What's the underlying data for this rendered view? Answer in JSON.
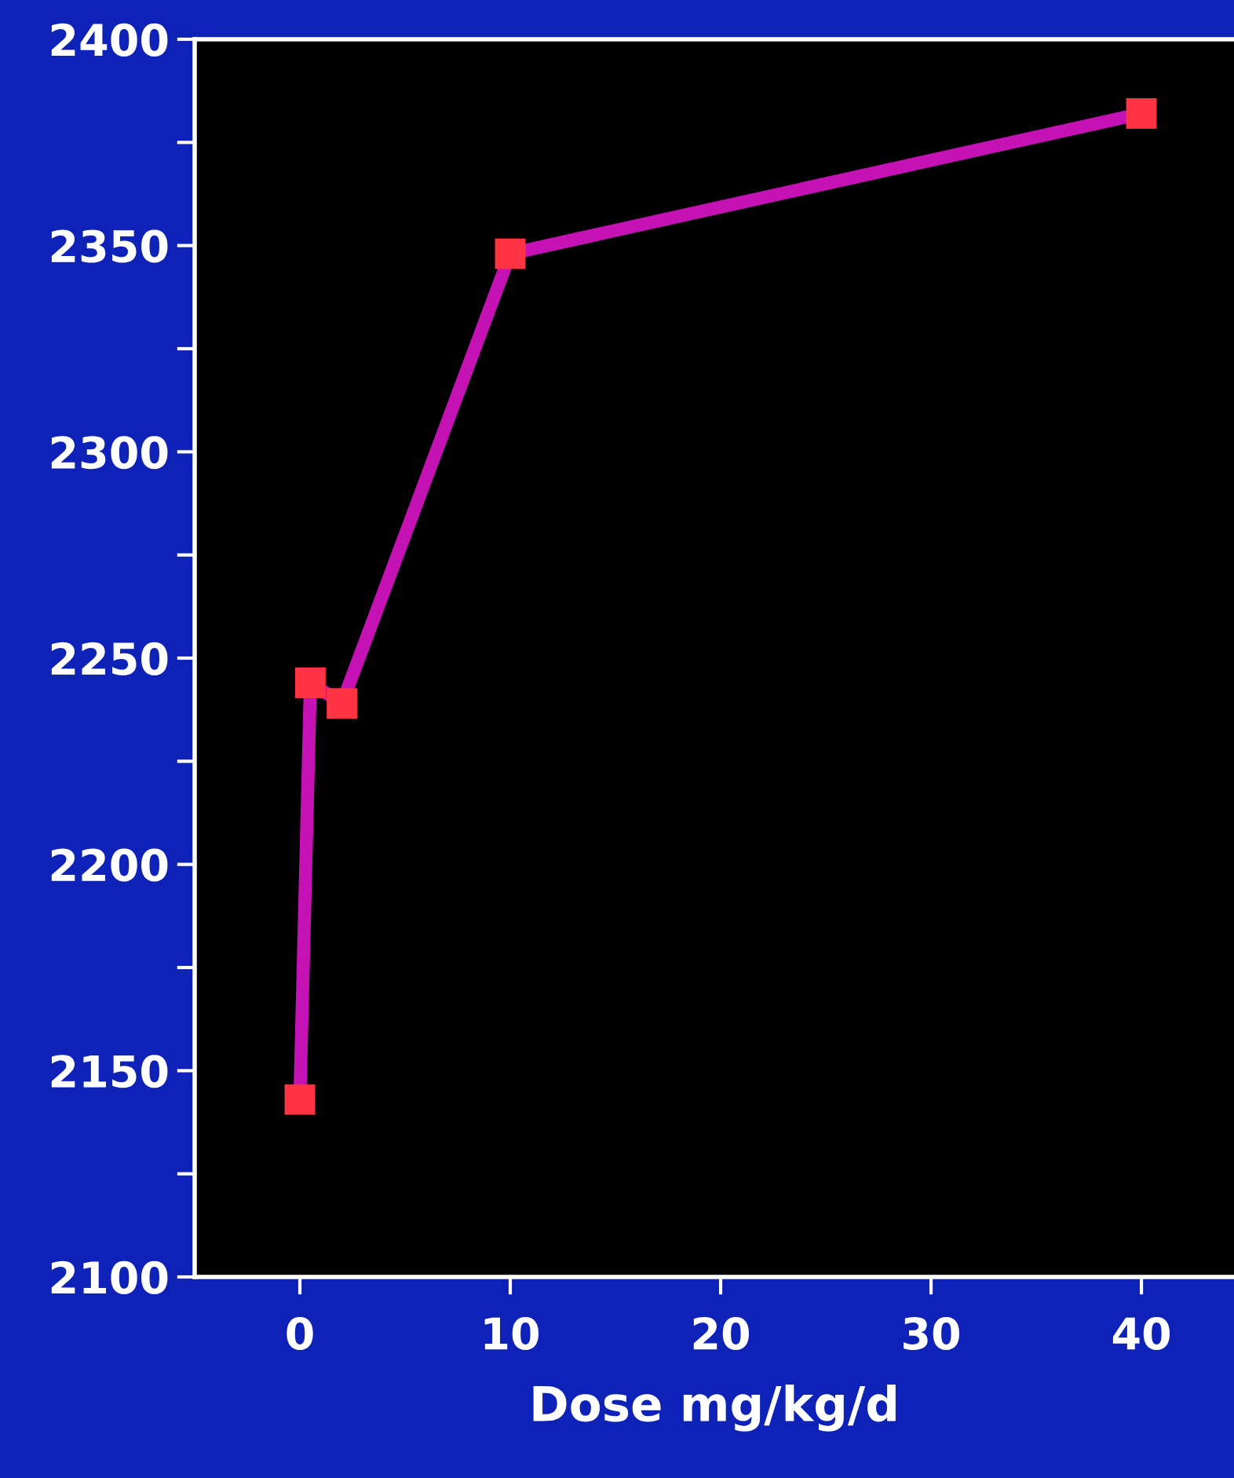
{
  "chart_data": {
    "type": "line",
    "xlabel": "Dose mg/kg/d",
    "x": [
      0,
      0.5,
      2,
      10,
      40
    ],
    "series": [
      {
        "color": "#c412b4",
        "values": [
          2143,
          2244,
          2239,
          2348,
          2382
        ]
      }
    ],
    "marker": "square",
    "line_style": "solid",
    "xlim": [
      -5,
      44.4
    ],
    "xticks": [
      0,
      10,
      20,
      30,
      40
    ],
    "ylim": [
      2100,
      2400
    ],
    "yticks": [
      2100,
      {
        "value": 2125,
        "label": null
      },
      2150,
      {
        "value": 2175,
        "label": null
      },
      2200,
      {
        "value": 2225,
        "label": null
      },
      2250,
      {
        "value": 2275,
        "label": null
      },
      2300,
      {
        "value": 2325,
        "label": null
      },
      2350,
      {
        "value": 2375,
        "label": null
      },
      2400
    ],
    "grid": false
  }
}
